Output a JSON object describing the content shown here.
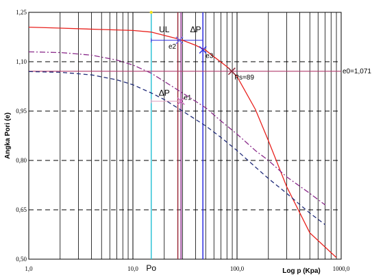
{
  "chart_data": {
    "type": "line",
    "xscale": "log",
    "xlim": [
      1,
      1000
    ],
    "ylim": [
      0.5,
      1.25
    ],
    "x_tick_labels": [
      "1,0",
      "10,0",
      "100,0",
      "1000,0"
    ],
    "x_tick_values": [
      1,
      10,
      100,
      1000
    ],
    "y_tick_labels": [
      "0,50",
      "0,65",
      "0,80",
      "0,95",
      "1,10",
      "1,25"
    ],
    "y_tick_values": [
      0.5,
      0.65,
      0.8,
      0.95,
      1.1,
      1.25
    ],
    "xlabel": "Log p (Kpa)",
    "ylabel": "Angka Pori (e)",
    "grid": {
      "major_dashed_horizontal": true,
      "minor_vertical": true
    },
    "series": [
      {
        "style": "solid",
        "color": "#e8201c",
        "x": [
          1,
          2,
          5,
          10,
          15,
          20,
          25,
          30,
          40,
          50,
          60,
          80,
          100,
          150,
          200,
          300,
          500,
          900
        ],
        "y": [
          1.205,
          1.202,
          1.198,
          1.195,
          1.19,
          1.18,
          1.172,
          1.165,
          1.15,
          1.135,
          1.115,
          1.085,
          1.055,
          0.955,
          0.86,
          0.72,
          0.58,
          0.505
        ]
      },
      {
        "style": "dashdot",
        "color": "#8a2a8a",
        "x": [
          1,
          2,
          4,
          7,
          10,
          15,
          20,
          30,
          50,
          70,
          100,
          150,
          200,
          300,
          500,
          700
        ],
        "y": [
          1.13,
          1.128,
          1.12,
          1.105,
          1.09,
          1.065,
          1.04,
          1.005,
          0.96,
          0.92,
          0.88,
          0.83,
          0.8,
          0.75,
          0.7,
          0.665
        ]
      },
      {
        "style": "dashed",
        "color": "#1f2a78",
        "x": [
          1,
          2,
          4,
          7,
          10,
          15,
          20,
          30,
          50,
          70,
          100,
          150,
          200,
          300,
          500,
          700
        ],
        "y": [
          1.07,
          1.068,
          1.06,
          1.045,
          1.03,
          1.005,
          0.985,
          0.95,
          0.905,
          0.87,
          0.83,
          0.78,
          0.745,
          0.7,
          0.64,
          0.605
        ]
      }
    ],
    "vertical_lines": [
      {
        "x": 15,
        "color": "#2ec4d6",
        "label": "Po"
      },
      {
        "x": 27,
        "color": "#9b2d3b"
      },
      {
        "x": 29,
        "color": "#8a2a8a"
      },
      {
        "x": 47,
        "color": "#2a2ae0"
      }
    ],
    "horizontal_lines": [
      {
        "y": 1.071,
        "color": "#b03a6a",
        "label": "e0=1,071"
      }
    ],
    "bracket_lines": [
      {
        "y": 1.165,
        "x1": 15,
        "x2": 47,
        "color": "#2a2ae0"
      },
      {
        "y": 0.98,
        "x1": 15,
        "x2": 29,
        "color": "#e0a0c0"
      }
    ],
    "markers": [
      {
        "x": 28,
        "y": 1.165,
        "label": "e2",
        "color": "#6e6ee8"
      },
      {
        "x": 47,
        "y": 1.136,
        "label": "e3",
        "color": "#2a2ae0"
      },
      {
        "x": 89,
        "y": 1.071,
        "label": "Ps=89",
        "color": "#8a2a3a"
      },
      {
        "x": 29,
        "y": 0.98,
        "label": "e1",
        "color": "#d070c0"
      }
    ],
    "annotations": [
      {
        "text": "UL",
        "x": 20,
        "y": 1.19
      },
      {
        "text": "ΔP",
        "x": 40,
        "y": 1.19
      },
      {
        "text": "ΔP",
        "x": 20,
        "y": 0.997
      }
    ]
  }
}
